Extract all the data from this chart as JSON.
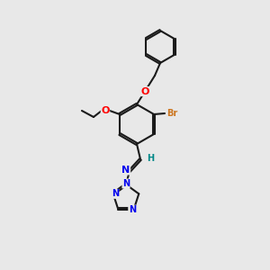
{
  "bg_color": "#e8e8e8",
  "bond_color": "#1a1a1a",
  "bond_width": 1.5,
  "atom_colors": {
    "O": "#ff0000",
    "Br": "#cc7722",
    "N": "#0000ee",
    "H": "#008888",
    "C": "#1a1a1a"
  },
  "font_size": 7,
  "fig_width": 3.0,
  "fig_height": 3.0,
  "dpi": 100
}
